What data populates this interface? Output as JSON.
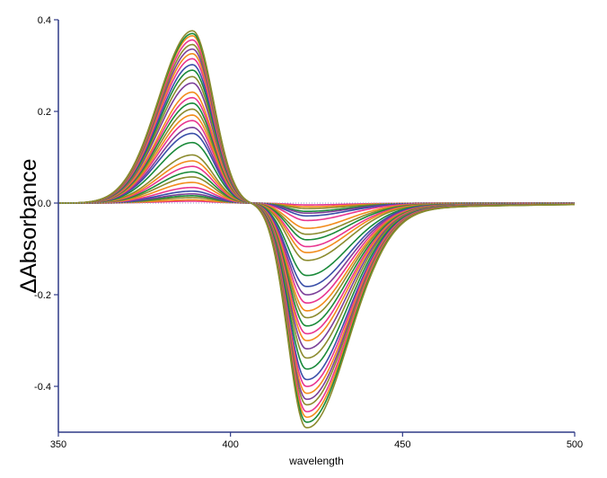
{
  "chart_data": {
    "type": "line",
    "title": "",
    "xlabel": "wavelength",
    "ylabel": "ΔAbsorbance",
    "xlim": [
      350,
      500
    ],
    "ylim": [
      -0.5,
      0.4
    ],
    "x_ticks": [
      "350",
      "400",
      "450",
      "500"
    ],
    "y_ticks": [
      "0.4",
      "0.2",
      "0.0",
      "-0.2",
      "-0.4"
    ],
    "x_tick_values": [
      350,
      400,
      450,
      500
    ],
    "y_tick_values": [
      0.4,
      0.2,
      0.0,
      -0.2,
      -0.4
    ],
    "grid": false,
    "legend": "none",
    "colors": {
      "axis": "#2e3a87",
      "baseline": "#8fa0c8",
      "palette": [
        "#e8358f",
        "#f28c1c",
        "#8b8b2e",
        "#1a8a3a",
        "#7b3f98",
        "#3a4fa8"
      ]
    },
    "shape": {
      "isosbestic_x": 406,
      "positive_peak_x": 389,
      "negative_peak_x": 422,
      "tail_end_x": 500
    },
    "series": [
      {
        "color": "#e8358f",
        "peak": 0.004,
        "trough": -0.004
      },
      {
        "color": "#f28c1c",
        "peak": 0.007,
        "trough": -0.008
      },
      {
        "color": "#8b8b2e",
        "peak": 0.012,
        "trough": -0.012
      },
      {
        "color": "#1a8a3a",
        "peak": 0.016,
        "trough": -0.018
      },
      {
        "color": "#7b3f98",
        "peak": 0.02,
        "trough": -0.022
      },
      {
        "color": "#3a4fa8",
        "peak": 0.026,
        "trough": -0.028
      },
      {
        "color": "#e8358f",
        "peak": 0.034,
        "trough": -0.038
      },
      {
        "color": "#f28c1c",
        "peak": 0.045,
        "trough": -0.055
      },
      {
        "color": "#8b8b2e",
        "peak": 0.057,
        "trough": -0.068
      },
      {
        "color": "#1a8a3a",
        "peak": 0.068,
        "trough": -0.08
      },
      {
        "color": "#e8358f",
        "peak": 0.08,
        "trough": -0.095
      },
      {
        "color": "#f28c1c",
        "peak": 0.092,
        "trough": -0.108
      },
      {
        "color": "#8b8b2e",
        "peak": 0.105,
        "trough": -0.125
      },
      {
        "color": "#1a8a3a",
        "peak": 0.132,
        "trough": -0.158
      },
      {
        "color": "#3a4fa8",
        "peak": 0.152,
        "trough": -0.182
      },
      {
        "color": "#7b3f98",
        "peak": 0.165,
        "trough": -0.2
      },
      {
        "color": "#e8358f",
        "peak": 0.18,
        "trough": -0.218
      },
      {
        "color": "#f28c1c",
        "peak": 0.192,
        "trough": -0.235
      },
      {
        "color": "#8b8b2e",
        "peak": 0.205,
        "trough": -0.25
      },
      {
        "color": "#1a8a3a",
        "peak": 0.218,
        "trough": -0.268
      },
      {
        "color": "#e8358f",
        "peak": 0.23,
        "trough": -0.285
      },
      {
        "color": "#f28c1c",
        "peak": 0.242,
        "trough": -0.3
      },
      {
        "color": "#7b3f98",
        "peak": 0.262,
        "trough": -0.318
      },
      {
        "color": "#8b8b2e",
        "peak": 0.276,
        "trough": -0.338
      },
      {
        "color": "#1a8a3a",
        "peak": 0.29,
        "trough": -0.362
      },
      {
        "color": "#3a4fa8",
        "peak": 0.302,
        "trough": -0.385
      },
      {
        "color": "#e8358f",
        "peak": 0.315,
        "trough": -0.4
      },
      {
        "color": "#f28c1c",
        "peak": 0.326,
        "trough": -0.415
      },
      {
        "color": "#7b3f98",
        "peak": 0.336,
        "trough": -0.428
      },
      {
        "color": "#8b8b2e",
        "peak": 0.346,
        "trough": -0.44
      },
      {
        "color": "#e8358f",
        "peak": 0.356,
        "trough": -0.455
      },
      {
        "color": "#f28c1c",
        "peak": 0.365,
        "trough": -0.467
      },
      {
        "color": "#1a8a3a",
        "peak": 0.37,
        "trough": -0.478
      },
      {
        "color": "#8b8b2e",
        "peak": 0.376,
        "trough": -0.49
      }
    ]
  }
}
